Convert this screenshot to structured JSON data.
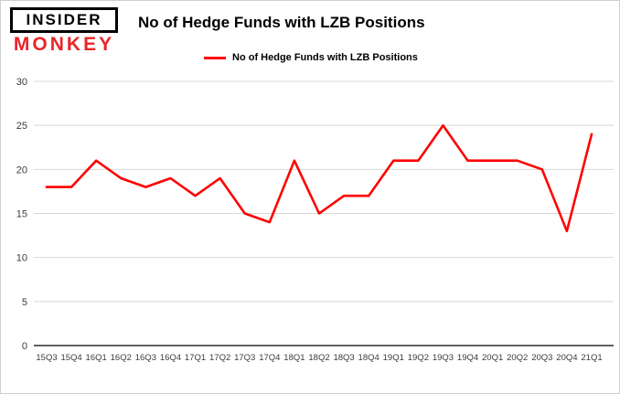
{
  "brand": {
    "line1": "INSIDER",
    "line2": "MONKEY"
  },
  "header": {
    "title": "No of Hedge Funds with LZB Positions"
  },
  "legend": {
    "label": "No of Hedge Funds with LZB Positions"
  },
  "chart_data": {
    "type": "line",
    "title": "No of Hedge Funds with LZB Positions",
    "categories": [
      "15Q3",
      "15Q4",
      "16Q1",
      "16Q2",
      "16Q3",
      "16Q4",
      "17Q1",
      "17Q2",
      "17Q3",
      "17Q4",
      "18Q1",
      "18Q2",
      "18Q3",
      "18Q4",
      "19Q1",
      "19Q2",
      "19Q3",
      "19Q4",
      "20Q1",
      "20Q2",
      "20Q3",
      "20Q4",
      "21Q1"
    ],
    "values": [
      18,
      18,
      21,
      19,
      18,
      19,
      17,
      19,
      15,
      14,
      21,
      15,
      17,
      17,
      21,
      21,
      25,
      21,
      21,
      21,
      20,
      13,
      24
    ],
    "xlabel": "",
    "ylabel": "",
    "ylim": [
      0,
      30
    ],
    "yticks": [
      0,
      5,
      10,
      15,
      20,
      25,
      30
    ],
    "grid": true,
    "legend_position": "top",
    "line_color": "#ff0000",
    "grid_color": "#d8d8d8",
    "axis_color": "#000000"
  }
}
